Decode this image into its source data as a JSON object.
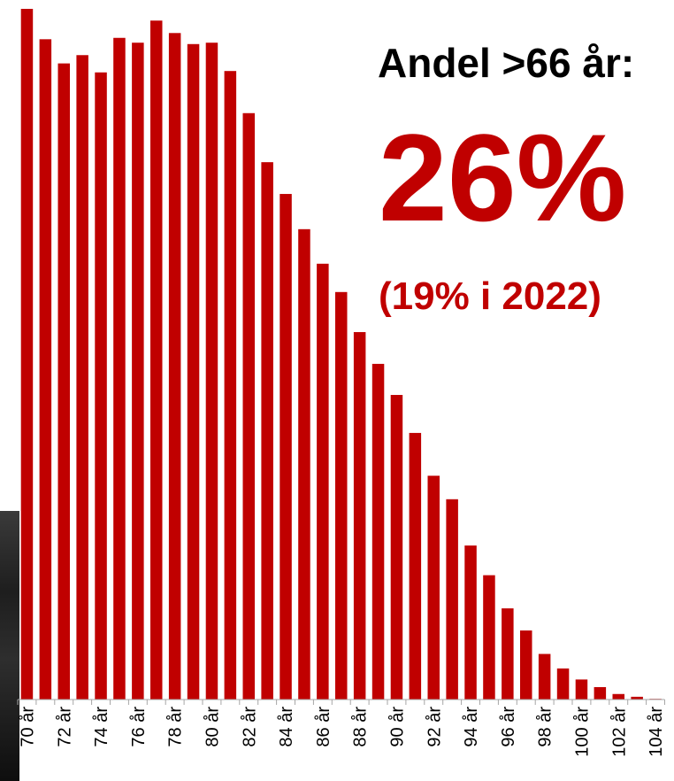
{
  "callout": {
    "label": "Andel >66 år:",
    "value": "26%",
    "note": "(19% i 2022)"
  },
  "colors": {
    "bar": "#c00000",
    "axis": "#a6a6a6",
    "tick_label": "#000000",
    "callout_value": "#c00000",
    "callout_label": "#000000"
  },
  "chart_data": {
    "type": "bar",
    "title": "",
    "xlabel": "",
    "ylabel": "",
    "ylim": [
      0,
      100
    ],
    "gridlines": false,
    "legend": "none",
    "categories": [
      "70 år",
      "71 år",
      "72 år",
      "73 år",
      "74 år",
      "75 år",
      "76 år",
      "77 år",
      "78 år",
      "79 år",
      "80 år",
      "81 år",
      "82 år",
      "83 år",
      "84 år",
      "85 år",
      "86 år",
      "87 år",
      "88 år",
      "89 år",
      "90 år",
      "91 år",
      "92 år",
      "93 år",
      "94 år",
      "95 år",
      "96 år",
      "97 år",
      "98 år",
      "99 år",
      "100 år",
      "101 år",
      "102 år",
      "103 år",
      "104 år"
    ],
    "tick_labels": [
      "70 år",
      "72 år",
      "74 år",
      "76 år",
      "78 år",
      "80 år",
      "82 år",
      "84 år",
      "86 år",
      "88 år",
      "90 år",
      "92 år",
      "94 år",
      "96 år",
      "98 år",
      "100 år",
      "102 år",
      "104 år"
    ],
    "values": [
      100,
      95.6,
      92.1,
      93.3,
      90.8,
      95.8,
      95.1,
      98.3,
      96.5,
      94.9,
      95.1,
      91.0,
      84.9,
      77.8,
      73.2,
      68.1,
      63.1,
      59.0,
      53.2,
      48.6,
      44.1,
      38.6,
      32.4,
      29.0,
      22.3,
      18.0,
      13.2,
      10.0,
      6.6,
      4.5,
      2.9,
      1.8,
      0.8,
      0.4,
      0.1
    ]
  }
}
